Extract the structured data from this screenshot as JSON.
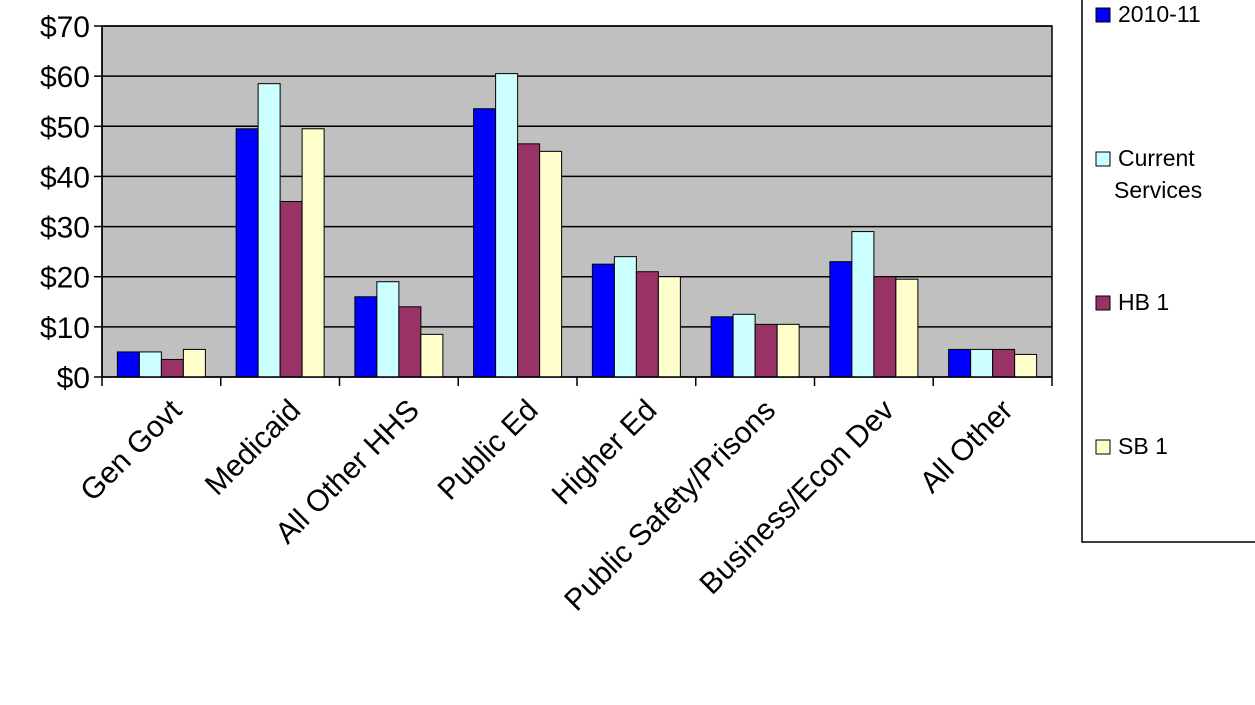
{
  "chart_data": {
    "type": "bar",
    "categories": [
      "Gen Govt",
      "Medicaid",
      "All Other HHS",
      "Public Ed",
      "Higher Ed",
      "Public Safety/Prisons",
      "Business/Econ Dev",
      "All Other"
    ],
    "series": [
      {
        "name": "2010-11",
        "legend_lines": [
          "2010-11"
        ],
        "color": "#0000ff",
        "values": [
          5,
          49.5,
          16,
          53.5,
          22.5,
          12,
          23,
          5.5
        ]
      },
      {
        "name": "Current Services",
        "legend_lines": [
          "Current",
          "Services"
        ],
        "color": "#ccffff",
        "values": [
          5,
          58.5,
          19,
          60.5,
          24,
          12.5,
          29,
          5.5
        ]
      },
      {
        "name": "HB 1",
        "legend_lines": [
          "HB 1"
        ],
        "color": "#993366",
        "values": [
          3.5,
          35,
          14,
          46.5,
          21,
          10.5,
          20,
          5.5
        ]
      },
      {
        "name": "SB 1",
        "legend_lines": [
          "SB 1"
        ],
        "color": "#ffffcc",
        "values": [
          5.5,
          49.5,
          8.5,
          45,
          20,
          10.5,
          19.5,
          4.5
        ]
      }
    ],
    "yticks": [
      0,
      10,
      20,
      30,
      40,
      50,
      60,
      70
    ],
    "ytick_labels": [
      "$0",
      "$10",
      "$20",
      "$30",
      "$40",
      "$50",
      "$60",
      "$70"
    ],
    "ylim": [
      0,
      70
    ],
    "grid": true,
    "plot_background": "#c0c0c0",
    "legend_position": "right",
    "title": "",
    "xlabel": "",
    "ylabel": ""
  }
}
